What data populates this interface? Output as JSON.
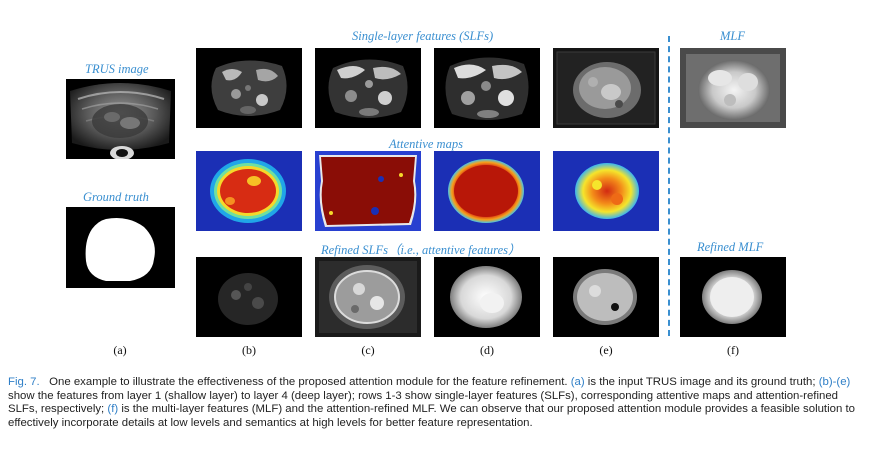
{
  "labels": {
    "trus_image": "TRUS image",
    "ground_truth": "Ground truth",
    "slf_header": "Single-layer features (SLFs)",
    "attentive_maps": "Attentive maps",
    "refined_slfs": "Refined SLFs（i.e., attentive features）",
    "mlf": "MLF",
    "refined_mlf": "Refined MLF"
  },
  "subfigures": [
    "(a)",
    "(b)",
    "(c)",
    "(d)",
    "(e)",
    "(f)"
  ],
  "caption": {
    "fig_label": "Fig. 7.",
    "t1": "One example to illustrate the effectiveness of the proposed attention module for the feature refinement.",
    "ref_a": "(a)",
    "t2": "is the input TRUS image and its ground truth;",
    "ref_b": "(b)",
    "dash": "-",
    "ref_e": "(e)",
    "t3": "show the features from layer 1 (shallow layer) to layer 4 (deep layer); rows 1-3 show single-layer features (SLFs), corresponding attentive maps and attention-refined SLFs, respectively;",
    "ref_f": "(f)",
    "t4": "is the multi-layer features (MLF) and the attention-refined MLF. We can observe that our proposed attention module provides a feasible solution to effectively incorporate details at low levels and semantics at high levels for better feature representation."
  },
  "colors": {
    "label_blue": "#3a8fd0",
    "caption_blue": "#2f7fc7",
    "jet_background": "#1b2fb5",
    "jet_hot": "#c81d10",
    "jet_dark_red": "#8a0d06"
  }
}
